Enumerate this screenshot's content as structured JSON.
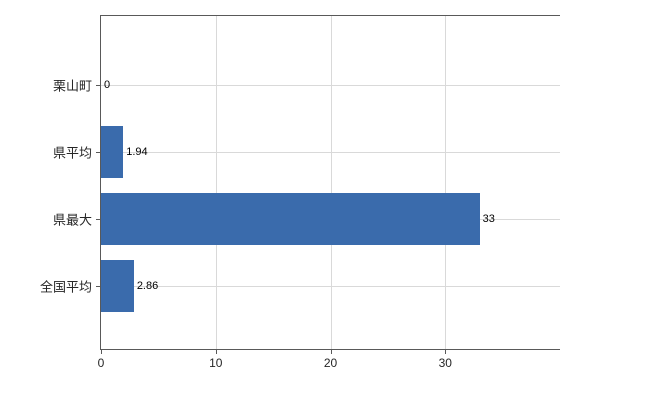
{
  "chart_data": {
    "type": "bar",
    "orientation": "horizontal",
    "title": "",
    "xlabel": "",
    "ylabel": "",
    "categories": [
      "栗山町",
      "県平均",
      "県最大",
      "全国平均"
    ],
    "values": [
      0,
      1.94,
      33,
      2.86
    ],
    "value_labels": [
      "0",
      "1.94",
      "33",
      "2.86"
    ],
    "xlim": [
      0,
      40
    ],
    "x_ticks": [
      0,
      10,
      20,
      30
    ],
    "x_tick_labels": [
      "0",
      "10",
      "20",
      "30"
    ],
    "grid": "both",
    "legend": "none",
    "bar_color": "#3a6bac",
    "grid_color": "#d9d9d9",
    "axis_color": "#595959"
  }
}
